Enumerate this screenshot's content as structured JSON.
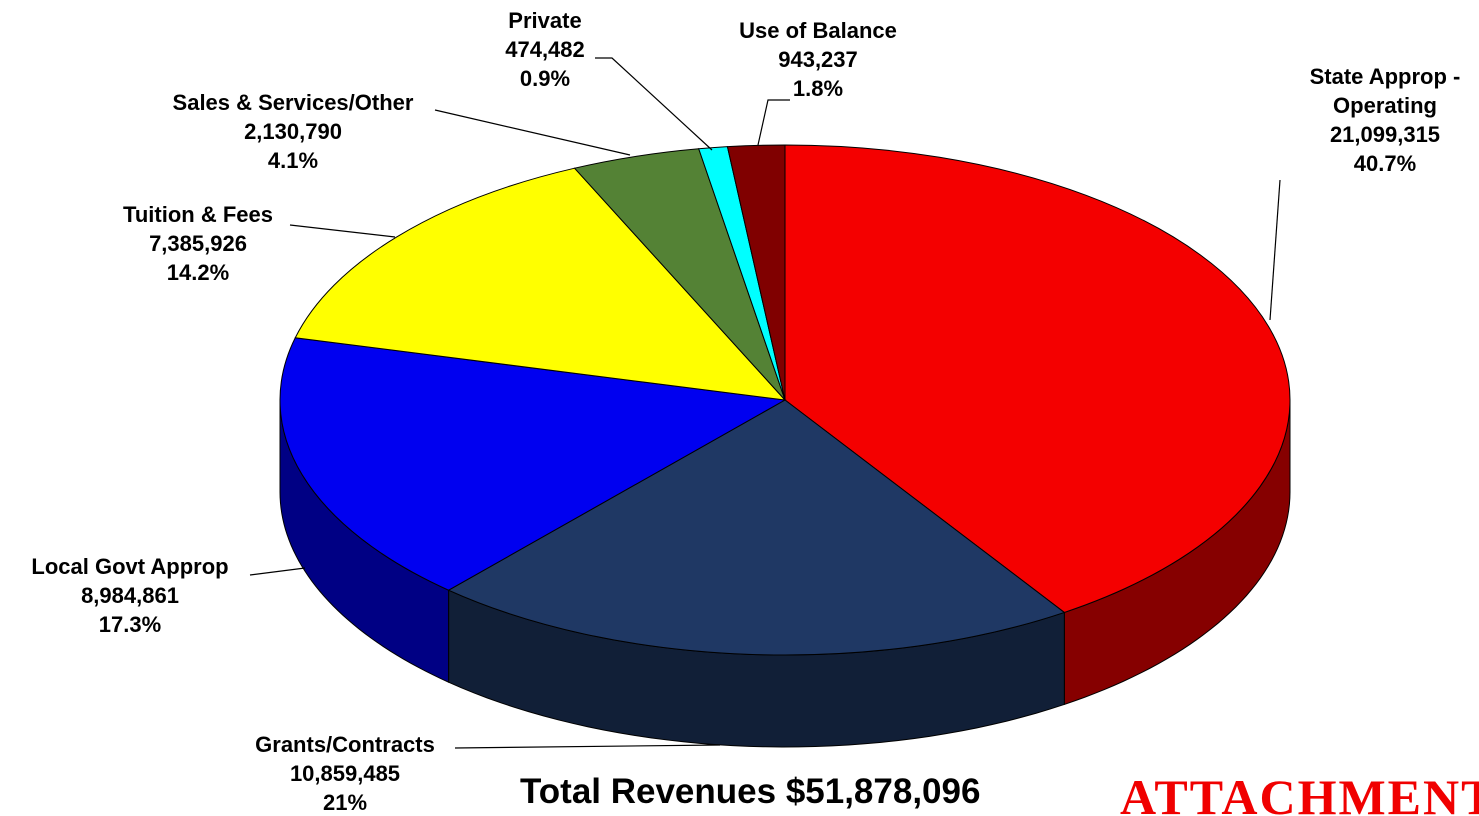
{
  "chart_data": {
    "type": "pie",
    "title": "Total Revenues $51,878,096",
    "annotation": "ATTACHMENT",
    "categories": [
      "State Approp - Operating",
      "Grants/Contracts",
      "Local Govt Approp",
      "Tuition & Fees",
      "Sales & Services/Other",
      "Private",
      "Use of Balance"
    ],
    "values": [
      21099315,
      10859485,
      8984861,
      7385926,
      2130790,
      474482,
      943237
    ],
    "value_labels": [
      "21,099,315",
      "10,859,485",
      "8,984,861",
      "7,385,926",
      "2,130,790",
      "474,482",
      "943,237"
    ],
    "percents": [
      40.7,
      21,
      17.3,
      14.2,
      4.1,
      0.9,
      1.8
    ],
    "percent_labels": [
      "40.7%",
      "21%",
      "17.3%",
      "14.2%",
      "4.1%",
      "0.9%",
      "1.8%"
    ],
    "colors": [
      "#f40000",
      "#1f3864",
      "#0000f0",
      "#ffff00",
      "#548235",
      "#00ffff",
      "#800000"
    ]
  }
}
